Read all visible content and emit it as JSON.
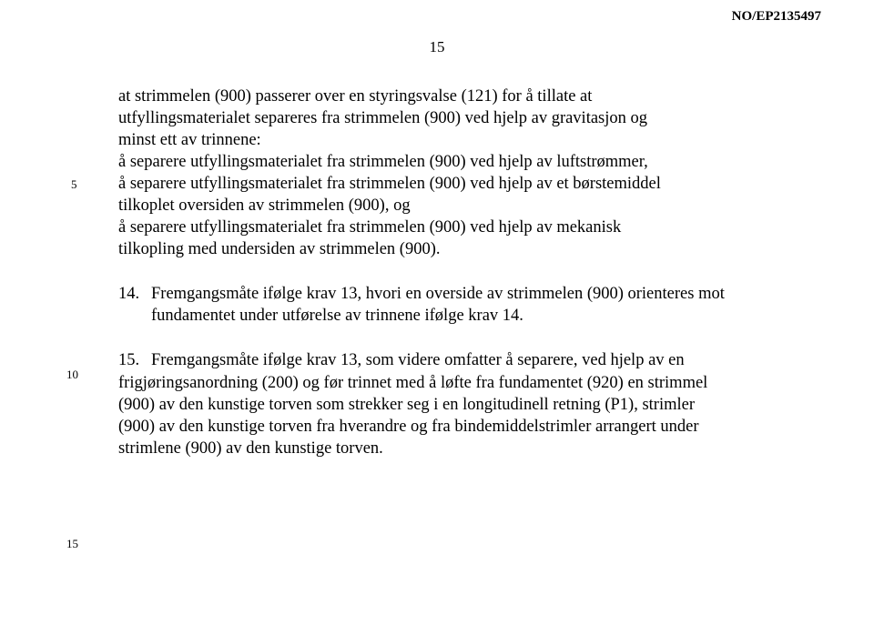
{
  "header": {
    "doc_number": "NO/EP2135497",
    "page_number": "15"
  },
  "line_numbers": {
    "ln5": "5",
    "ln10": "10",
    "ln15": "15"
  },
  "block1": {
    "l1": "at strimmelen (900) passerer over en styringsvalse (121) for å tillate at",
    "l2": "utfyllingsmaterialet separeres fra strimmelen (900) ved hjelp av gravitasjon og",
    "l3": "minst ett av trinnene:",
    "l4": "å separere utfyllingsmaterialet fra strimmelen (900) ved hjelp av luftstrømmer,",
    "l5": "å separere utfyllingsmaterialet fra strimmelen (900) ved hjelp av et børstemiddel",
    "l6": "tilkoplet oversiden av strimmelen (900), og",
    "l7": "å separere utfyllingsmaterialet fra strimmelen (900) ved hjelp av mekanisk",
    "l8": "tilkopling med undersiden av strimmelen (900)."
  },
  "block2": {
    "num": "14.",
    "text": "Fremgangsmåte ifølge krav 13, hvori en overside av strimmelen (900) orienteres mot fundamentet under utførelse av trinnene ifølge krav 14."
  },
  "block3": {
    "num": "15.",
    "text_lead": "Fremgangsmåte ifølge krav 13, som videre omfatter å separere, ved hjelp av en",
    "l2": "frigjøringsanordning (200) og før trinnet med å løfte fra fundamentet (920) en strimmel",
    "l3": "(900) av den kunstige torven som strekker seg i en longitudinell retning (P1), strimler",
    "l4": "(900) av den kunstige torven fra hverandre og fra bindemiddelstrimler arrangert under",
    "l5": "strimlene (900) av den kunstige torven."
  }
}
